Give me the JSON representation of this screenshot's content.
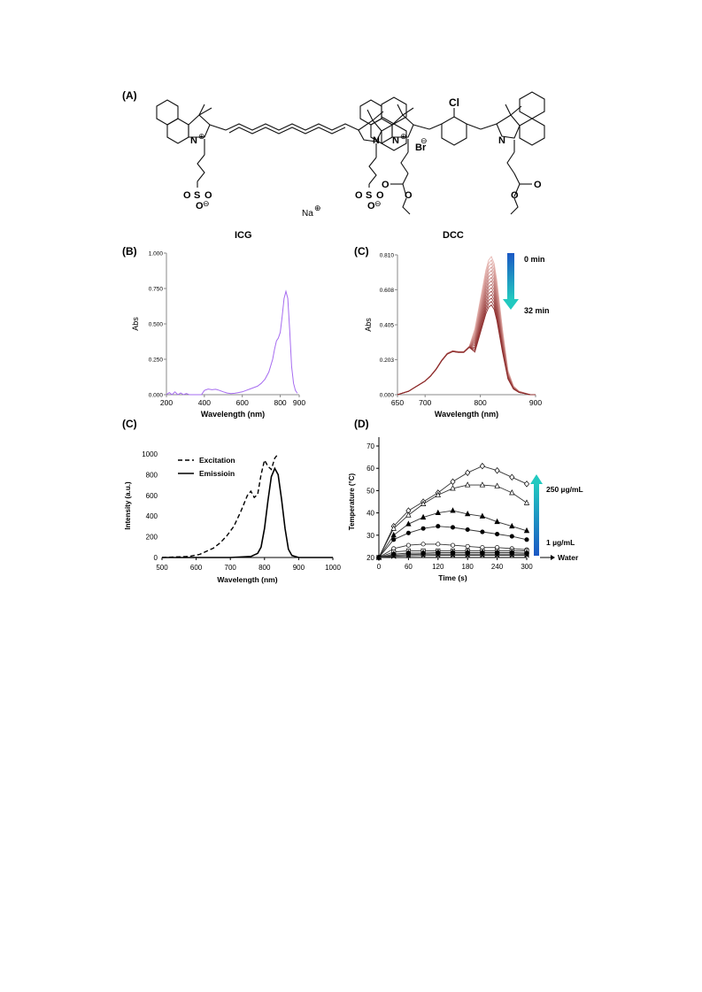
{
  "figure": {
    "panel_labels": {
      "a": "(A)",
      "b": "(B)",
      "c_left": "(C)",
      "c_right": "(C)",
      "d": "(D)"
    },
    "structures": {
      "icg_atoms": [
        "N",
        "N",
        "S",
        "O",
        "O",
        "O",
        "S",
        "O",
        "O",
        "O",
        "Na"
      ],
      "dcc_atoms": [
        "N",
        "Br",
        "Cl",
        "N",
        "O",
        "O",
        "O",
        "O"
      ],
      "charges": [
        "⊕",
        "⊖",
        "⊕",
        "⊖",
        "⊖",
        "⊕"
      ]
    },
    "icg_title": "ICG",
    "dcc_title": "DCC",
    "dcc_time_start": "0 min",
    "dcc_time_end": "32 min",
    "conc_high": "250 µg/mL",
    "conc_low": "1 µg/mL",
    "water_label": "Water",
    "colors": {
      "icg_line": "#a66cf0",
      "dcc_dark": "#8b2a2a",
      "dcc_light": "#e6b5b0",
      "arrow_top": "#1b58c4",
      "arrow_bottom": "#22c9c0"
    }
  },
  "chart_data": [
    {
      "id": "icg-abs",
      "type": "line",
      "title": "ICG",
      "xlabel": "Wavelength (nm)",
      "ylabel": "Abs",
      "xlim": [
        200,
        900
      ],
      "ylim": [
        0,
        1
      ],
      "xticks": [
        "200",
        "400",
        "600",
        "800",
        "900"
      ],
      "yticks": [
        "0.000",
        "0.250",
        "0.500",
        "0.750",
        "1.000"
      ],
      "series": [
        {
          "x": [
            200,
            215,
            230,
            245,
            260,
            275,
            290,
            305,
            320,
            335,
            350,
            370,
            385,
            400,
            420,
            440,
            460,
            480,
            500,
            520,
            540,
            560,
            580,
            600,
            620,
            640,
            660,
            680,
            700,
            720,
            740,
            760,
            770,
            780,
            790,
            800,
            810,
            820,
            830,
            840,
            850,
            860,
            870,
            880,
            890
          ],
          "y": [
            0.0,
            0.015,
            0.0,
            0.02,
            0.0,
            0.012,
            0.0,
            0.008,
            0.0,
            0.0,
            0.0,
            0.0,
            0.0,
            0.03,
            0.04,
            0.035,
            0.038,
            0.03,
            0.02,
            0.012,
            0.008,
            0.01,
            0.015,
            0.02,
            0.03,
            0.04,
            0.05,
            0.06,
            0.08,
            0.11,
            0.16,
            0.25,
            0.32,
            0.38,
            0.4,
            0.44,
            0.55,
            0.68,
            0.73,
            0.68,
            0.45,
            0.2,
            0.08,
            0.03,
            0.01
          ]
        }
      ]
    },
    {
      "id": "dcc-abs",
      "type": "line",
      "title": "DCC",
      "xlabel": "Wavelength (nm)",
      "ylabel": "Abs",
      "xlim": [
        650,
        900
      ],
      "ylim": [
        0,
        0.81
      ],
      "xticks": [
        "650",
        "700",
        "800",
        "900"
      ],
      "yticks": [
        "0.000",
        "0.203",
        "0.405",
        "0.608",
        "0.810"
      ],
      "x": [
        650,
        660,
        670,
        680,
        690,
        700,
        710,
        720,
        730,
        740,
        750,
        760,
        770,
        780,
        790,
        800,
        810,
        815,
        820,
        825,
        830,
        840,
        850,
        860,
        870,
        880,
        890,
        900
      ],
      "base_shape": [
        0.0,
        0.01,
        0.02,
        0.04,
        0.06,
        0.08,
        0.11,
        0.15,
        0.2,
        0.24,
        0.255,
        0.25,
        0.25,
        0.28,
        0.38,
        0.55,
        0.72,
        0.78,
        0.8,
        0.76,
        0.66,
        0.38,
        0.14,
        0.05,
        0.02,
        0.01,
        0.0,
        0.0
      ],
      "series_peaks": [
        0.8,
        0.78,
        0.76,
        0.74,
        0.72,
        0.7,
        0.68,
        0.66,
        0.64,
        0.62,
        0.6,
        0.58,
        0.56,
        0.54,
        0.52
      ],
      "series_time_min": [
        0,
        32
      ]
    },
    {
      "id": "icg-exc-em",
      "type": "line",
      "xlabel": "Wavelength (nm)",
      "ylabel": "Intensity (a.u.)",
      "xlim": [
        500,
        1000
      ],
      "ylim": [
        0,
        1000
      ],
      "xticks": [
        "500",
        "600",
        "700",
        "800",
        "900",
        "1000"
      ],
      "yticks": [
        "0",
        "200",
        "400",
        "600",
        "800",
        "1000"
      ],
      "legend": [
        "Excitation",
        "Emissioin"
      ],
      "series": [
        {
          "name": "Excitation",
          "x": [
            500,
            540,
            580,
            610,
            630,
            650,
            670,
            690,
            710,
            730,
            750,
            760,
            770,
            780,
            790,
            800,
            810,
            820,
            830,
            840
          ],
          "y": [
            0,
            5,
            10,
            30,
            60,
            90,
            140,
            210,
            300,
            440,
            600,
            640,
            580,
            610,
            800,
            940,
            880,
            850,
            960,
            1000
          ]
        },
        {
          "name": "Emissioin",
          "x": [
            500,
            700,
            760,
            780,
            790,
            800,
            810,
            820,
            830,
            840,
            850,
            860,
            870,
            880,
            900,
            1000
          ],
          "y": [
            0,
            0,
            10,
            40,
            100,
            280,
            550,
            780,
            860,
            800,
            560,
            280,
            80,
            20,
            0,
            0
          ]
        }
      ]
    },
    {
      "id": "photothermal",
      "type": "line",
      "xlabel": "Time (s)",
      "ylabel": "Temperature (°C)",
      "xlim": [
        0,
        300
      ],
      "ylim": [
        20,
        70
      ],
      "xticks": [
        "0",
        "60",
        "120",
        "180",
        "240",
        "300"
      ],
      "yticks": [
        "20",
        "30",
        "40",
        "50",
        "60",
        "70"
      ],
      "x": [
        0,
        30,
        60,
        90,
        120,
        150,
        180,
        210,
        240,
        270,
        300
      ],
      "series": [
        {
          "y": [
            20,
            34,
            41,
            45,
            49,
            54,
            58,
            61,
            59,
            56,
            53
          ],
          "marker": "diamond-open"
        },
        {
          "y": [
            20,
            33,
            39,
            44,
            48,
            51,
            52.5,
            52.5,
            52,
            49,
            44.5
          ],
          "marker": "triangle-open"
        },
        {
          "y": [
            20,
            30,
            35,
            38,
            40,
            41,
            39.5,
            38.5,
            36,
            34,
            32
          ],
          "marker": "triangle"
        },
        {
          "y": [
            20,
            28,
            31,
            33,
            34,
            33.5,
            32.5,
            31.5,
            30.5,
            29.5,
            28
          ],
          "marker": "circle"
        },
        {
          "y": [
            20,
            24,
            25.5,
            26,
            26,
            25.5,
            25,
            24.5,
            24.5,
            24,
            23.5
          ],
          "marker": "circle-open"
        },
        {
          "y": [
            20,
            22.5,
            23,
            23,
            23,
            23,
            23,
            23,
            23,
            23,
            23
          ],
          "marker": "square-open"
        },
        {
          "y": [
            20,
            21.5,
            22,
            22,
            22.2,
            22.2,
            22.2,
            22.2,
            22.2,
            22.2,
            22
          ],
          "marker": "diamond"
        },
        {
          "y": [
            20,
            21,
            21.3,
            21.5,
            21.5,
            21.5,
            21.5,
            21.5,
            21.5,
            21.5,
            21.5
          ],
          "marker": "square"
        },
        {
          "y": [
            20,
            20.5,
            20.8,
            20.9,
            21,
            21,
            21,
            21,
            21,
            21,
            21
          ],
          "marker": "cross"
        }
      ]
    }
  ]
}
